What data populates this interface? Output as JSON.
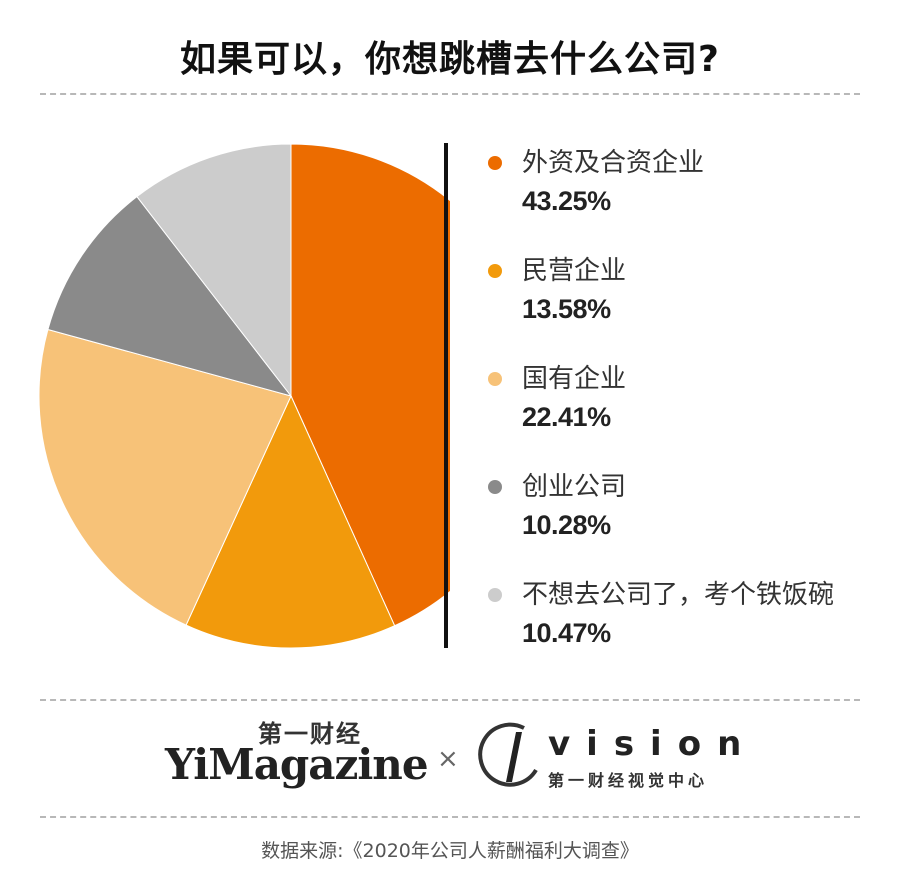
{
  "title": "如果可以，你想跳槽去什么公司?",
  "chart_data": {
    "type": "pie",
    "title": "如果可以，你想跳槽去什么公司?",
    "slices": [
      {
        "label": "外资及合资企业",
        "value": 43.25,
        "display": "43.25%",
        "color": "#ec6c00"
      },
      {
        "label": "民营企业",
        "value": 13.58,
        "display": "13.58%",
        "color": "#f29a0c"
      },
      {
        "label": "国有企业",
        "value": 22.41,
        "display": "22.41%",
        "color": "#f7c278"
      },
      {
        "label": "创业公司",
        "value": 10.28,
        "display": "10.28%",
        "color": "#8a8a8a"
      },
      {
        "label": "不想去公司了，考个铁饭碗",
        "value": 10.47,
        "display": "10.47%",
        "color": "#cccccc"
      }
    ],
    "legend_position": "right"
  },
  "logos": {
    "yimagazine_cn": "第一财经",
    "yimagazine_en": "YiMagazine",
    "times": "×",
    "vision_en": "vision",
    "vision_cn": "第一财经视觉中心"
  },
  "source": "数据来源:《2020年公司人薪酬福利大调查》"
}
